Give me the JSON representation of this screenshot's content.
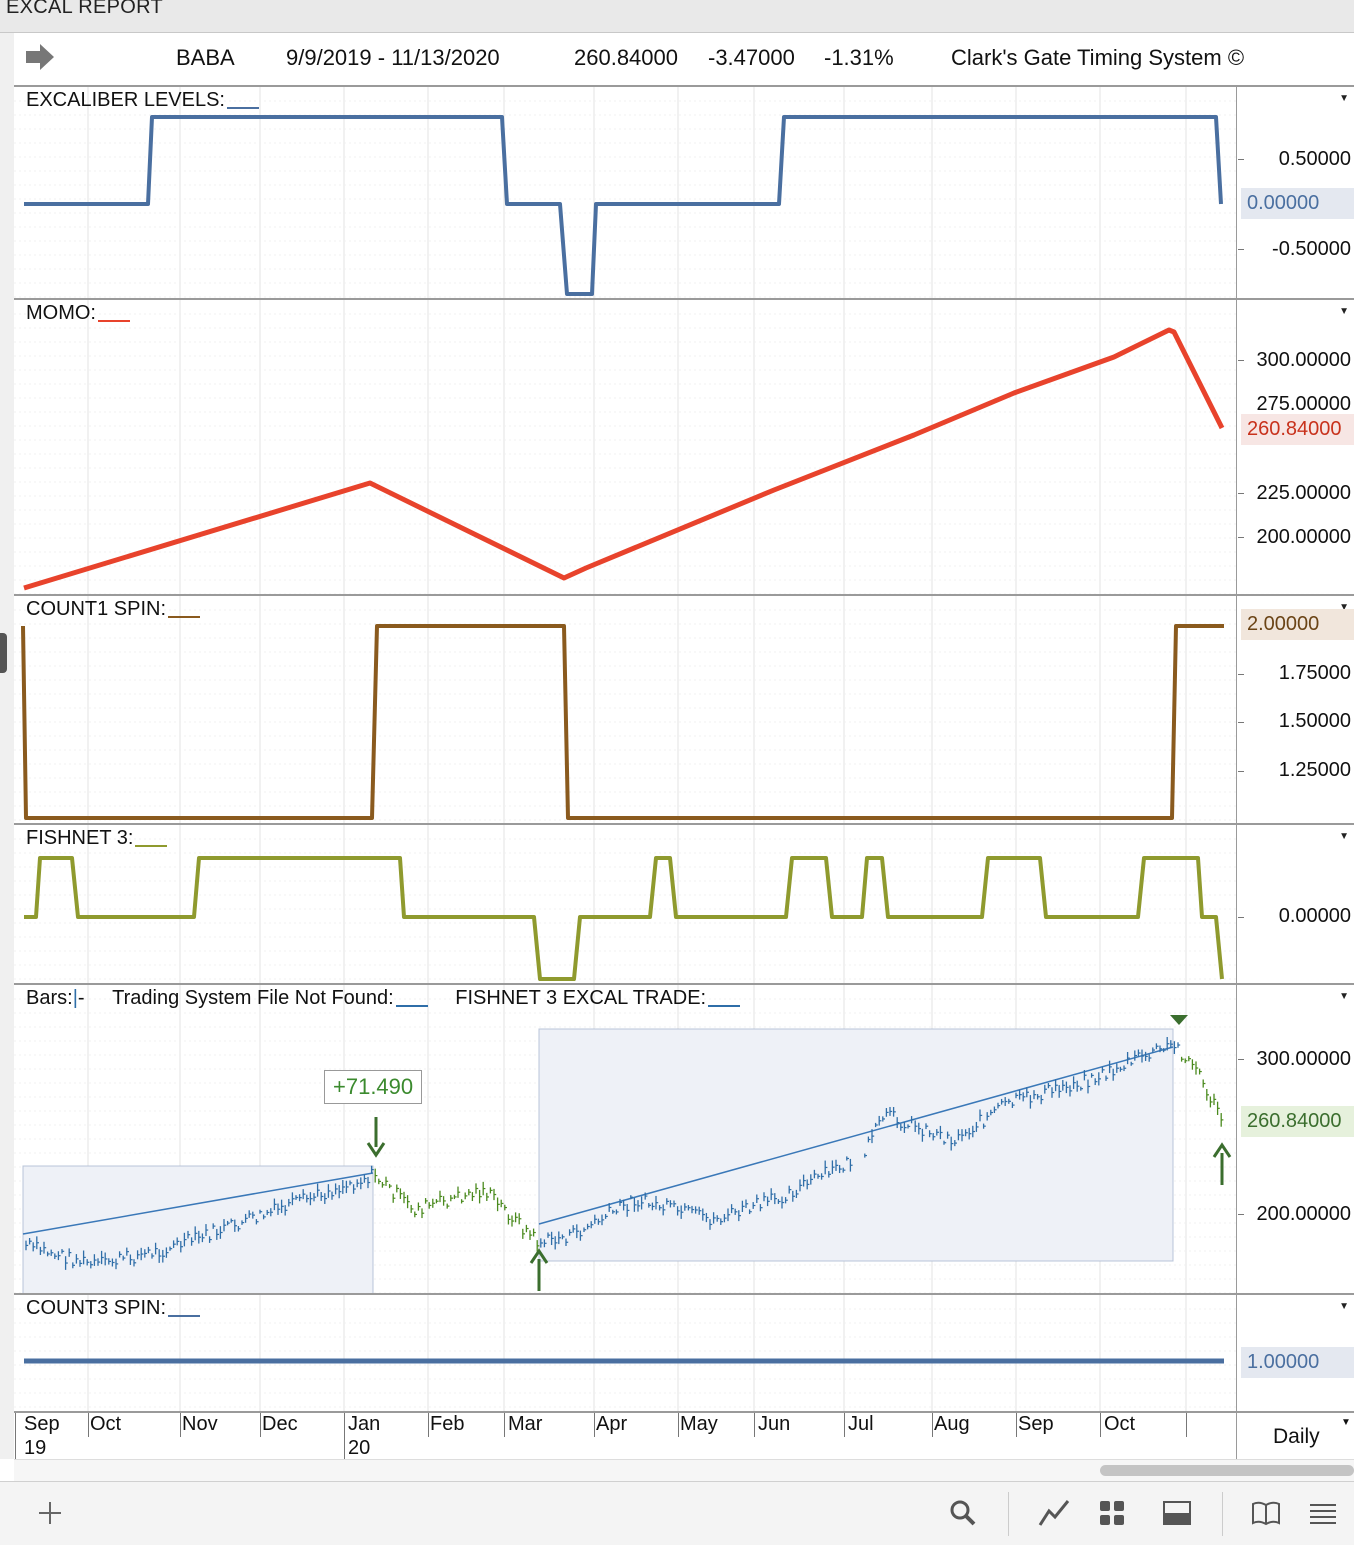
{
  "window": {
    "title": "EXCAL REPORT"
  },
  "header": {
    "symbol": "BABA",
    "date_range": "9/9/2019 - 11/13/2020",
    "last": "260.84000",
    "change": "-3.47000",
    "pct": "-1.31%",
    "system": "Clark's Gate Timing System ©",
    "nav_icon": "arrow-right-icon"
  },
  "panels": {
    "excaliber": {
      "title": "EXCALIBER LEVELS:",
      "ticks": [
        "0.50000",
        "0.00000",
        "-0.50000"
      ],
      "current": "0.00000",
      "color": "#4a6fa0"
    },
    "momo": {
      "title": "MOMO:",
      "ticks": [
        "300.00000",
        "275.00000",
        "225.00000",
        "200.00000"
      ],
      "current": "260.84000",
      "color": "#e8432c"
    },
    "count1": {
      "title": "COUNT1 SPIN:",
      "ticks": [
        "1.75000",
        "1.50000",
        "1.25000"
      ],
      "current": "2.00000",
      "color": "#8a5a1e"
    },
    "fishnet": {
      "title": "FISHNET 3:",
      "ticks": [
        "0.00000"
      ],
      "color": "#8f9a2e"
    },
    "bars": {
      "title_bars": "Bars:",
      "title_trading": "Trading System File Not Found:",
      "title_trade": "FISHNET 3 EXCAL TRADE:",
      "ticks": [
        "300.00000",
        "200.00000"
      ],
      "current": "260.84000",
      "trade_label": "+71.490",
      "colors": {
        "up": "#2f6ea8",
        "down": "#4a8a1e",
        "arrow": "#3b6e2e",
        "channel": "#3a78b8"
      }
    },
    "count3": {
      "title": "COUNT3 SPIN:",
      "current": "1.00000",
      "color": "#4a6fa0"
    }
  },
  "xaxis": {
    "months": [
      "Sep",
      "Oct",
      "Nov",
      "Dec",
      "Jan",
      "Feb",
      "Mar",
      "Apr",
      "May",
      "Jun",
      "Jul",
      "Aug",
      "Sep",
      "Oct"
    ],
    "years": [
      "19",
      "20"
    ],
    "period": "Daily"
  },
  "toolbar": {
    "icons": [
      "add-icon",
      "search-icon",
      "line-chart-icon",
      "grid-icon",
      "panel-icon",
      "book-icon",
      "menu-icon"
    ]
  }
}
